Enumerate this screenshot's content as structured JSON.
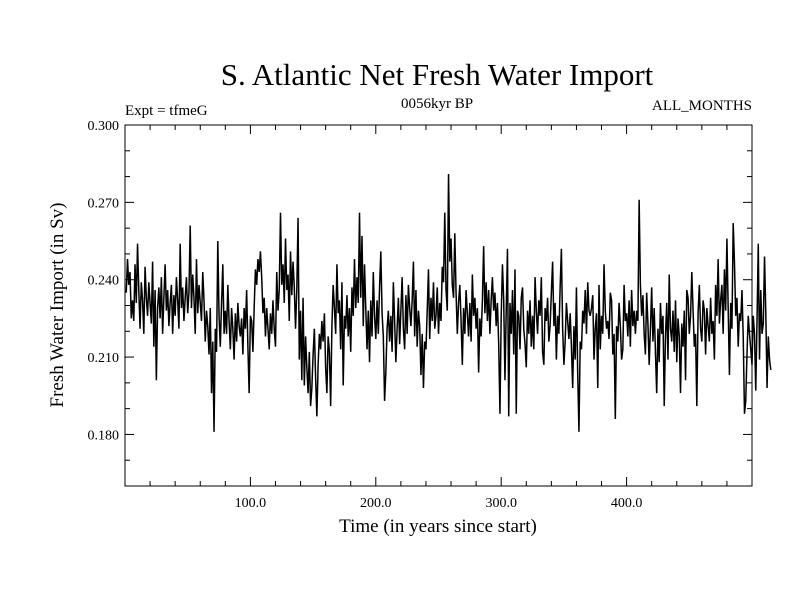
{
  "chart_data": {
    "type": "line",
    "title": "S. Atlantic Net Fresh Water Import",
    "subtitle_left": "Expt = tfmeG",
    "subtitle_center": "0056kyr BP",
    "subtitle_right": "ALL_MONTHS",
    "xlabel": "Time (in years since start)",
    "ylabel": "Fresh Water Import (in Sv)",
    "xlim": [
      0,
      500
    ],
    "ylim": [
      0.16,
      0.3
    ],
    "x_ticks": [
      100,
      200,
      300,
      400
    ],
    "x_tick_labels": [
      "100.0",
      "200.0",
      "300.0",
      "400.0"
    ],
    "x_minor_step": 20,
    "y_ticks": [
      0.18,
      0.21,
      0.24,
      0.27,
      0.3
    ],
    "y_tick_labels": [
      "0.180",
      "0.210",
      "0.240",
      "0.270",
      "0.300"
    ],
    "y_minor_step": 0.01,
    "series": [
      {
        "name": "Fresh Water Import",
        "x_start": 1,
        "x_step": 1,
        "values": [
          0.235,
          0.248,
          0.238,
          0.243,
          0.225,
          0.232,
          0.224,
          0.246,
          0.231,
          0.254,
          0.236,
          0.221,
          0.239,
          0.232,
          0.219,
          0.245,
          0.233,
          0.226,
          0.239,
          0.231,
          0.223,
          0.247,
          0.214,
          0.236,
          0.201,
          0.229,
          0.237,
          0.225,
          0.241,
          0.219,
          0.233,
          0.246,
          0.228,
          0.236,
          0.222,
          0.231,
          0.238,
          0.219,
          0.234,
          0.226,
          0.241,
          0.232,
          0.221,
          0.254,
          0.229,
          0.237,
          0.224,
          0.233,
          0.241,
          0.227,
          0.235,
          0.261,
          0.229,
          0.242,
          0.233,
          0.219,
          0.248,
          0.227,
          0.238,
          0.231,
          0.224,
          0.243,
          0.232,
          0.216,
          0.228,
          0.222,
          0.211,
          0.229,
          0.196,
          0.216,
          0.181,
          0.221,
          0.212,
          0.255,
          0.226,
          0.214,
          0.231,
          0.246,
          0.219,
          0.228,
          0.219,
          0.238,
          0.224,
          0.213,
          0.229,
          0.221,
          0.209,
          0.227,
          0.216,
          0.231,
          0.222,
          0.218,
          0.225,
          0.211,
          0.229,
          0.221,
          0.236,
          0.214,
          0.196,
          0.226,
          0.224,
          0.212,
          0.229,
          0.244,
          0.238,
          0.248,
          0.243,
          0.251,
          0.241,
          0.227,
          0.233,
          0.218,
          0.229,
          0.221,
          0.213,
          0.227,
          0.219,
          0.232,
          0.221,
          0.214,
          0.243,
          0.228,
          0.236,
          0.266,
          0.238,
          0.246,
          0.231,
          0.256,
          0.236,
          0.242,
          0.224,
          0.251,
          0.234,
          0.247,
          0.237,
          0.221,
          0.236,
          0.264,
          0.209,
          0.228,
          0.201,
          0.233,
          0.199,
          0.218,
          0.206,
          0.196,
          0.212,
          0.191,
          0.198,
          0.211,
          0.221,
          0.202,
          0.187,
          0.207,
          0.219,
          0.213,
          0.224,
          0.216,
          0.227,
          0.206,
          0.196,
          0.218,
          0.212,
          0.191,
          0.222,
          0.238,
          0.229,
          0.219,
          0.246,
          0.227,
          0.232,
          0.213,
          0.239,
          0.199,
          0.226,
          0.221,
          0.234,
          0.218,
          0.229,
          0.212,
          0.237,
          0.226,
          0.248,
          0.229,
          0.241,
          0.231,
          0.266,
          0.233,
          0.257,
          0.222,
          0.246,
          0.229,
          0.213,
          0.228,
          0.208,
          0.232,
          0.218,
          0.243,
          0.226,
          0.217,
          0.232,
          0.219,
          0.237,
          0.251,
          0.227,
          0.218,
          0.193,
          0.204,
          0.221,
          0.228,
          0.216,
          0.226,
          0.212,
          0.239,
          0.224,
          0.208,
          0.221,
          0.233,
          0.215,
          0.228,
          0.241,
          0.221,
          0.213,
          0.234,
          0.219,
          0.238,
          0.229,
          0.222,
          0.232,
          0.247,
          0.218,
          0.236,
          0.214,
          0.228,
          0.222,
          0.203,
          0.219,
          0.198,
          0.216,
          0.213,
          0.228,
          0.244,
          0.217,
          0.233,
          0.224,
          0.239,
          0.221,
          0.226,
          0.237,
          0.219,
          0.231,
          0.224,
          0.245,
          0.239,
          0.266,
          0.236,
          0.228,
          0.281,
          0.247,
          0.256,
          0.238,
          0.233,
          0.258,
          0.235,
          0.219,
          0.231,
          0.238,
          0.224,
          0.207,
          0.229,
          0.219,
          0.236,
          0.227,
          0.218,
          0.231,
          0.216,
          0.242,
          0.226,
          0.233,
          0.221,
          0.229,
          0.204,
          0.225,
          0.218,
          0.232,
          0.253,
          0.227,
          0.239,
          0.224,
          0.236,
          0.219,
          0.232,
          0.241,
          0.228,
          0.235,
          0.222,
          0.231,
          0.215,
          0.188,
          0.226,
          0.246,
          0.232,
          0.201,
          0.228,
          0.252,
          0.187,
          0.231,
          0.219,
          0.236,
          0.211,
          0.244,
          0.188,
          0.228,
          0.226,
          0.213,
          0.233,
          0.237,
          0.221,
          0.215,
          0.206,
          0.228,
          0.219,
          0.232,
          0.214,
          0.226,
          0.213,
          0.241,
          0.228,
          0.219,
          0.232,
          0.226,
          0.241,
          0.212,
          0.207,
          0.229,
          0.224,
          0.233,
          0.216,
          0.222,
          0.235,
          0.247,
          0.222,
          0.231,
          0.209,
          0.226,
          0.219,
          0.237,
          0.252,
          0.221,
          0.207,
          0.216,
          0.231,
          0.224,
          0.217,
          0.227,
          0.214,
          0.198,
          0.222,
          0.209,
          0.237,
          0.204,
          0.181,
          0.216,
          0.213,
          0.228,
          0.223,
          0.236,
          0.219,
          0.239,
          0.228,
          0.226,
          0.229,
          0.234,
          0.209,
          0.221,
          0.227,
          0.198,
          0.238,
          0.213,
          0.226,
          0.219,
          0.246,
          0.228,
          0.221,
          0.224,
          0.217,
          0.235,
          0.232,
          0.211,
          0.219,
          0.186,
          0.222,
          0.216,
          0.231,
          0.222,
          0.209,
          0.213,
          0.238,
          0.224,
          0.227,
          0.218,
          0.232,
          0.214,
          0.236,
          0.222,
          0.228,
          0.219,
          0.228,
          0.224,
          0.271,
          0.238,
          0.226,
          0.234,
          0.219,
          0.211,
          0.235,
          0.223,
          0.207,
          0.221,
          0.237,
          0.216,
          0.229,
          0.212,
          0.196,
          0.221,
          0.208,
          0.231,
          0.219,
          0.226,
          0.191,
          0.218,
          0.231,
          0.209,
          0.242,
          0.221,
          0.216,
          0.228,
          0.212,
          0.232,
          0.208,
          0.225,
          0.218,
          0.196,
          0.223,
          0.214,
          0.228,
          0.201,
          0.236,
          0.233,
          0.219,
          0.226,
          0.243,
          0.228,
          0.214,
          0.219,
          0.191,
          0.227,
          0.238,
          0.221,
          0.216,
          0.232,
          0.228,
          0.211,
          0.229,
          0.222,
          0.216,
          0.233,
          0.219,
          0.224,
          0.209,
          0.238,
          0.226,
          0.248,
          0.223,
          0.232,
          0.238,
          0.219,
          0.244,
          0.228,
          0.256,
          0.229,
          0.203,
          0.231,
          0.221,
          0.262,
          0.247,
          0.226,
          0.233,
          0.214,
          0.227,
          0.224,
          0.236,
          0.218,
          0.188,
          0.193,
          0.211,
          0.226,
          0.219,
          0.213,
          0.207,
          0.226,
          0.219,
          0.197,
          0.224,
          0.254,
          0.209,
          0.236,
          0.219,
          0.223,
          0.249,
          0.227,
          0.198,
          0.218,
          0.209,
          0.205
        ]
      }
    ]
  }
}
